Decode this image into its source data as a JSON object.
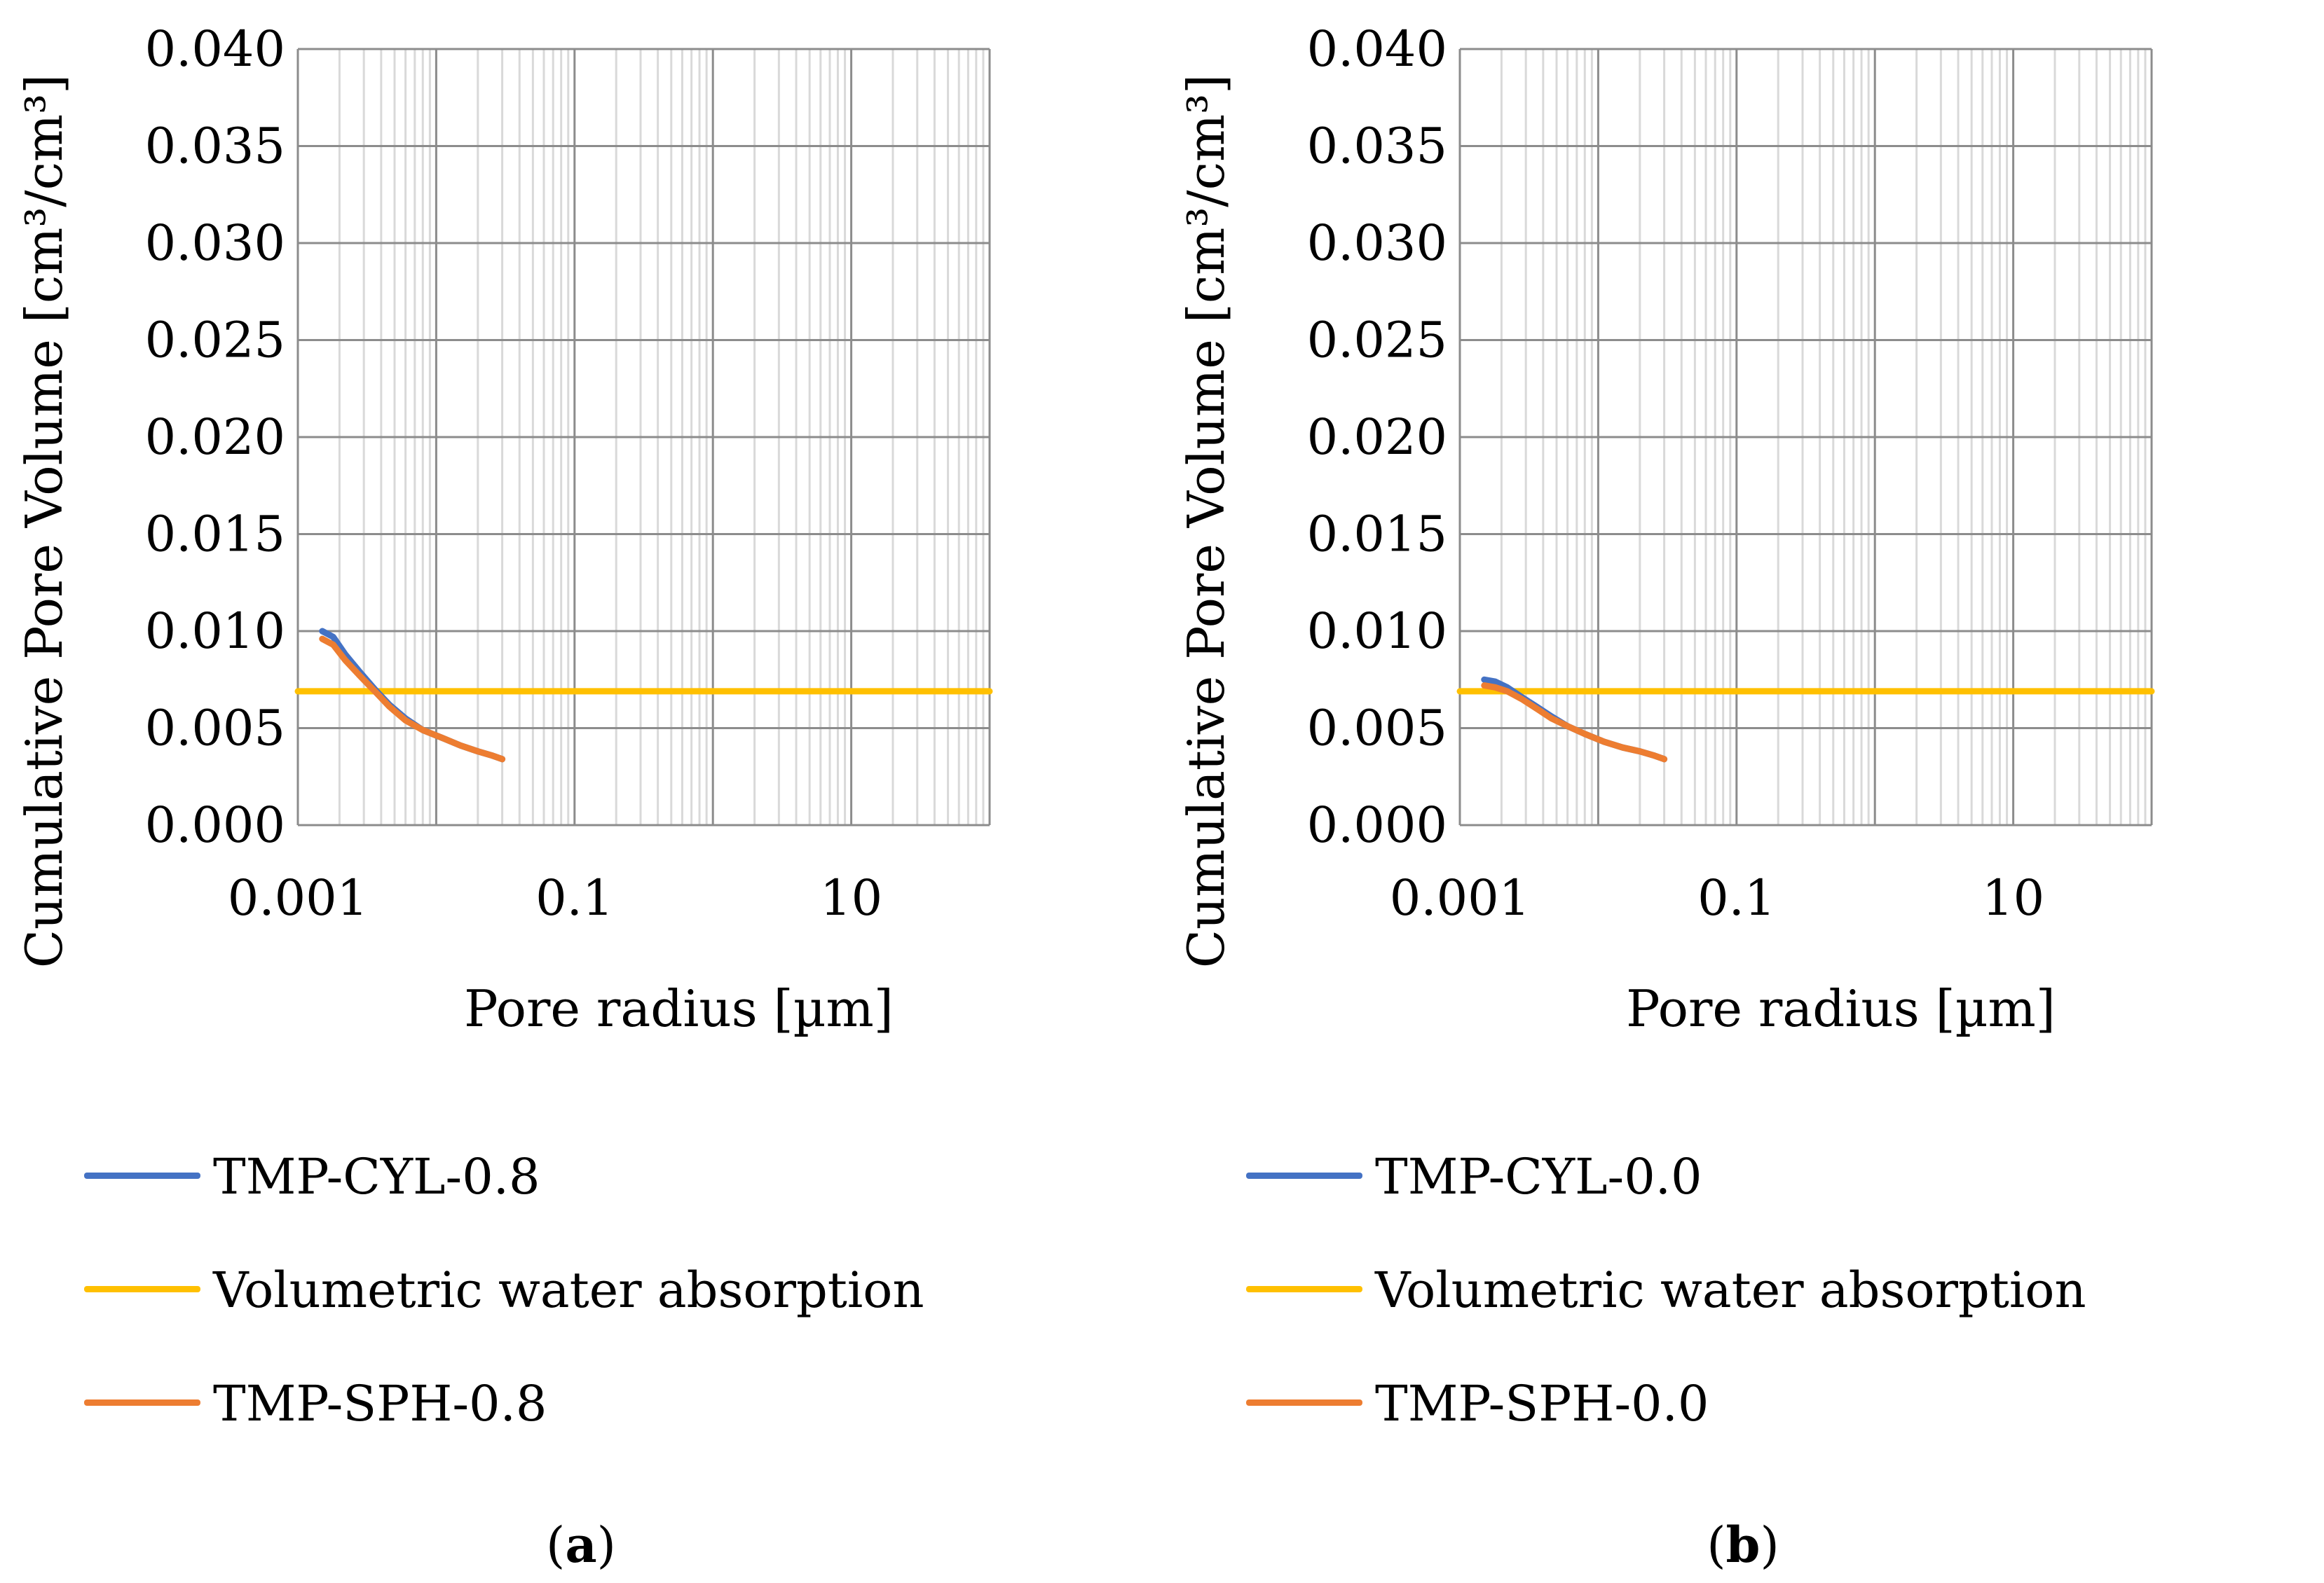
{
  "chart_data": [
    {
      "type": "line",
      "panel": "a",
      "x_scale": "log",
      "xlabel": "Pore radius [µm]",
      "ylabel": "Cumulative Pore Volume [cm³/cm³]",
      "xlim": [
        0.001,
        100
      ],
      "ylim": [
        0,
        0.04
      ],
      "x_ticks": [
        "0.001",
        "0.1",
        "10"
      ],
      "y_ticks": [
        "0.000",
        "0.005",
        "0.010",
        "0.015",
        "0.020",
        "0.025",
        "0.030",
        "0.035",
        "0.040"
      ],
      "grid": true,
      "series": [
        {
          "name": "TMP-CYL-0.8",
          "color": "#4472C4",
          "x": [
            0.0015,
            0.0018,
            0.0022,
            0.0028,
            0.0036,
            0.0046,
            0.006,
            0.008,
            0.011,
            0.015,
            0.02,
            0.025,
            0.03
          ],
          "y": [
            0.01,
            0.0097,
            0.0088,
            0.0079,
            0.007,
            0.0062,
            0.0055,
            0.0049,
            0.0045,
            0.0041,
            0.0038,
            0.0036,
            0.0034
          ]
        },
        {
          "name": "Volumetric water absorption",
          "color": "#FFC000",
          "x": [
            0.001,
            100
          ],
          "y": [
            0.0069,
            0.0069
          ]
        },
        {
          "name": "TMP-SPH-0.8",
          "color": "#ED7D31",
          "x": [
            0.0015,
            0.0018,
            0.0022,
            0.0028,
            0.0036,
            0.0046,
            0.006,
            0.008,
            0.011,
            0.015,
            0.02,
            0.025,
            0.03
          ],
          "y": [
            0.0096,
            0.0093,
            0.0085,
            0.0077,
            0.0069,
            0.0061,
            0.0054,
            0.0049,
            0.0045,
            0.0041,
            0.0038,
            0.0036,
            0.0034
          ]
        }
      ],
      "caption_letter": "a"
    },
    {
      "type": "line",
      "panel": "b",
      "x_scale": "log",
      "xlabel": "Pore radius [µm]",
      "ylabel": "Cumulative Pore Volume [cm³/cm³]",
      "xlim": [
        0.001,
        100
      ],
      "ylim": [
        0,
        0.04
      ],
      "x_ticks": [
        "0.001",
        "0.1",
        "10"
      ],
      "y_ticks": [
        "0.000",
        "0.005",
        "0.010",
        "0.015",
        "0.020",
        "0.025",
        "0.030",
        "0.035",
        "0.040"
      ],
      "grid": true,
      "series": [
        {
          "name": "TMP-CYL-0.0",
          "color": "#4472C4",
          "x": [
            0.0015,
            0.0018,
            0.0022,
            0.0028,
            0.0036,
            0.0046,
            0.006,
            0.008,
            0.011,
            0.015,
            0.02,
            0.025,
            0.03
          ],
          "y": [
            0.0075,
            0.0074,
            0.0071,
            0.0066,
            0.0061,
            0.0056,
            0.0051,
            0.0047,
            0.0043,
            0.004,
            0.0038,
            0.0036,
            0.0034
          ]
        },
        {
          "name": "Volumetric water absorption",
          "color": "#FFC000",
          "x": [
            0.001,
            100
          ],
          "y": [
            0.0069,
            0.0069
          ]
        },
        {
          "name": "TMP-SPH-0.0",
          "color": "#ED7D31",
          "x": [
            0.0015,
            0.0018,
            0.0022,
            0.0028,
            0.0036,
            0.0046,
            0.006,
            0.008,
            0.011,
            0.015,
            0.02,
            0.025,
            0.03
          ],
          "y": [
            0.0072,
            0.0071,
            0.0069,
            0.0065,
            0.006,
            0.0055,
            0.0051,
            0.0047,
            0.0043,
            0.004,
            0.0038,
            0.0036,
            0.0034
          ]
        }
      ],
      "caption_letter": "b"
    }
  ]
}
